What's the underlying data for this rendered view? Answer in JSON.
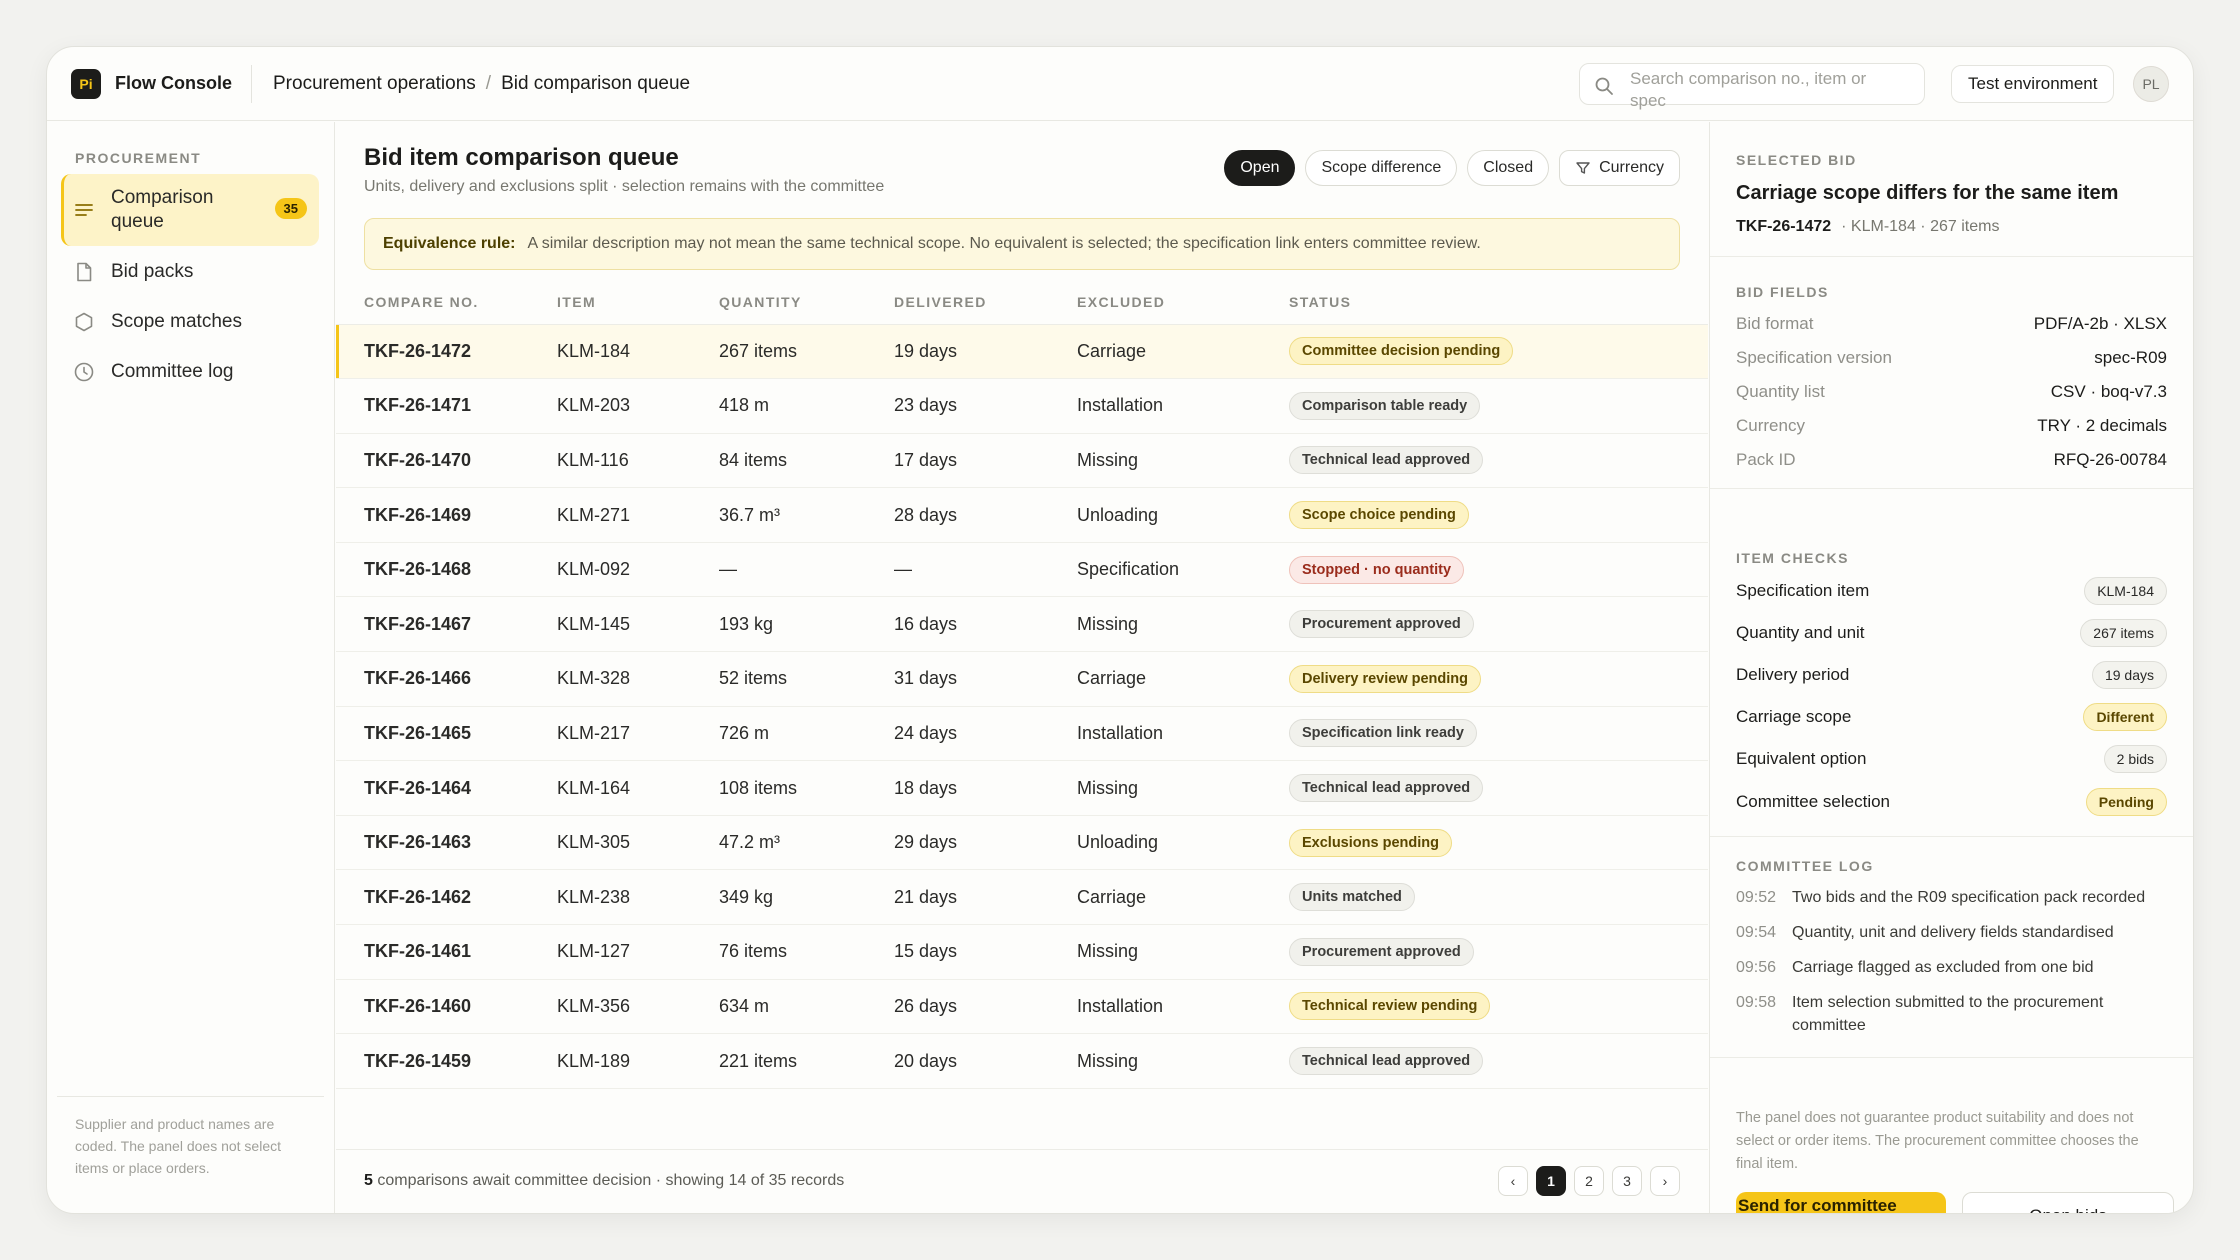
{
  "app": {
    "logo": "Pi",
    "name": "Flow Console"
  },
  "breadcrumb": [
    "Procurement operations",
    "Bid comparison queue"
  ],
  "search": {
    "placeholder": "Search comparison no., item or spec",
    "value": ""
  },
  "env_label": "Test environment",
  "user_initials": "PL",
  "sidebar": {
    "section": "PROCUREMENT",
    "items": [
      {
        "label": "Comparison queue",
        "count": "35",
        "active": true,
        "icon": "list-icon"
      },
      {
        "label": "Bid packs",
        "icon": "document-icon"
      },
      {
        "label": "Scope matches",
        "icon": "hexagon-icon"
      },
      {
        "label": "Committee log",
        "icon": "clock-icon"
      }
    ],
    "footer": "Supplier and product names are coded. The panel does not select items or place orders."
  },
  "main": {
    "title": "Bid item comparison queue",
    "subtitle": "Units, delivery and exclusions split · selection remains with the committee",
    "filters": [
      "Open",
      "Scope difference",
      "Closed",
      "Currency"
    ],
    "rule_label": "Equivalence rule:",
    "rule_text": "A similar description may not mean the same technical scope. No equivalent is selected; the specification link enters committee review.",
    "columns": [
      "COMPARE NO.",
      "ITEM",
      "QUANTITY",
      "DELIVERED",
      "EXCLUDED",
      "STATUS"
    ],
    "rows": [
      {
        "no": "TKF-26-1472",
        "item": "KLM-184",
        "qty": "267 items",
        "delivered": "19 days",
        "excluded": "Carriage",
        "status": "Committee decision pending",
        "tone": "yellow",
        "selected": true
      },
      {
        "no": "TKF-26-1471",
        "item": "KLM-203",
        "qty": "418 m",
        "delivered": "23 days",
        "excluded": "Installation",
        "status": "Comparison table ready",
        "tone": "gray"
      },
      {
        "no": "TKF-26-1470",
        "item": "KLM-116",
        "qty": "84 items",
        "delivered": "17 days",
        "excluded": "Missing",
        "status": "Technical lead approved",
        "tone": "gray"
      },
      {
        "no": "TKF-26-1469",
        "item": "KLM-271",
        "qty": "36.7 m³",
        "delivered": "28 days",
        "excluded": "Unloading",
        "status": "Scope choice pending",
        "tone": "yellow"
      },
      {
        "no": "TKF-26-1468",
        "item": "KLM-092",
        "qty": "—",
        "delivered": "—",
        "excluded": "Specification",
        "status": "Stopped · no quantity",
        "tone": "red"
      },
      {
        "no": "TKF-26-1467",
        "item": "KLM-145",
        "qty": "193 kg",
        "delivered": "16 days",
        "excluded": "Missing",
        "status": "Procurement approved",
        "tone": "gray"
      },
      {
        "no": "TKF-26-1466",
        "item": "KLM-328",
        "qty": "52 items",
        "delivered": "31 days",
        "excluded": "Carriage",
        "status": "Delivery review pending",
        "tone": "yellow"
      },
      {
        "no": "TKF-26-1465",
        "item": "KLM-217",
        "qty": "726 m",
        "delivered": "24 days",
        "excluded": "Installation",
        "status": "Specification link ready",
        "tone": "gray"
      },
      {
        "no": "TKF-26-1464",
        "item": "KLM-164",
        "qty": "108 items",
        "delivered": "18 days",
        "excluded": "Missing",
        "status": "Technical lead approved",
        "tone": "gray"
      },
      {
        "no": "TKF-26-1463",
        "item": "KLM-305",
        "qty": "47.2 m³",
        "delivered": "29 days",
        "excluded": "Unloading",
        "status": "Exclusions pending",
        "tone": "yellow"
      },
      {
        "no": "TKF-26-1462",
        "item": "KLM-238",
        "qty": "349 kg",
        "delivered": "21 days",
        "excluded": "Carriage",
        "status": "Units matched",
        "tone": "gray"
      },
      {
        "no": "TKF-26-1461",
        "item": "KLM-127",
        "qty": "76 items",
        "delivered": "15 days",
        "excluded": "Missing",
        "status": "Procurement approved",
        "tone": "gray"
      },
      {
        "no": "TKF-26-1460",
        "item": "KLM-356",
        "qty": "634 m",
        "delivered": "26 days",
        "excluded": "Installation",
        "status": "Technical review pending",
        "tone": "yellow"
      },
      {
        "no": "TKF-26-1459",
        "item": "KLM-189",
        "qty": "221 items",
        "delivered": "20 days",
        "excluded": "Missing",
        "status": "Technical lead approved",
        "tone": "gray"
      }
    ],
    "footer_count": "5",
    "footer_text": "comparisons await committee decision · showing 14 of 35 records",
    "pages": [
      "1",
      "2",
      "3"
    ],
    "prev": "‹",
    "next": "›"
  },
  "panel": {
    "label": "SELECTED BID",
    "title": "Carriage scope differs for the same item",
    "meta_id": "TKF-26-1472",
    "meta_rest": "· KLM-184 · 267 items",
    "fields_label": "BID FIELDS",
    "fields": [
      {
        "k": "Bid format",
        "v": "PDF/A-2b · XLSX"
      },
      {
        "k": "Specification version",
        "v": "spec-R09"
      },
      {
        "k": "Quantity list",
        "v": "CSV · boq-v7.3"
      },
      {
        "k": "Currency",
        "v": "TRY · 2 decimals"
      },
      {
        "k": "Pack ID",
        "v": "RFQ-26-00784"
      }
    ],
    "checks_label": "ITEM CHECKS",
    "checks": [
      {
        "k": "Specification item",
        "v": "KLM-184",
        "warn": false
      },
      {
        "k": "Quantity and unit",
        "v": "267 items",
        "warn": false
      },
      {
        "k": "Delivery period",
        "v": "19 days",
        "warn": false
      },
      {
        "k": "Carriage scope",
        "v": "Different",
        "warn": true
      },
      {
        "k": "Equivalent option",
        "v": "2 bids",
        "warn": false
      },
      {
        "k": "Committee selection",
        "v": "Pending",
        "warn": true
      }
    ],
    "log_label": "COMMITTEE LOG",
    "log": [
      {
        "t": "09:52",
        "text": "Two bids and the R09 specification pack recorded"
      },
      {
        "t": "09:54",
        "text": "Quantity, unit and delivery fields standardised"
      },
      {
        "t": "09:56",
        "text": "Carriage flagged as excluded from one bid"
      },
      {
        "t": "09:58",
        "text": "Item selection submitted to the procurement committee"
      }
    ],
    "disclaimer": "The panel does not guarantee product suitability and does not select or order items. The procurement committee chooses the final item.",
    "primary_button": "Send for committee review",
    "secondary_button": "Open bids"
  },
  "colors": {
    "accent": "#f5c518",
    "dark": "#1c1c1a",
    "danger": "#9a2c1c"
  }
}
